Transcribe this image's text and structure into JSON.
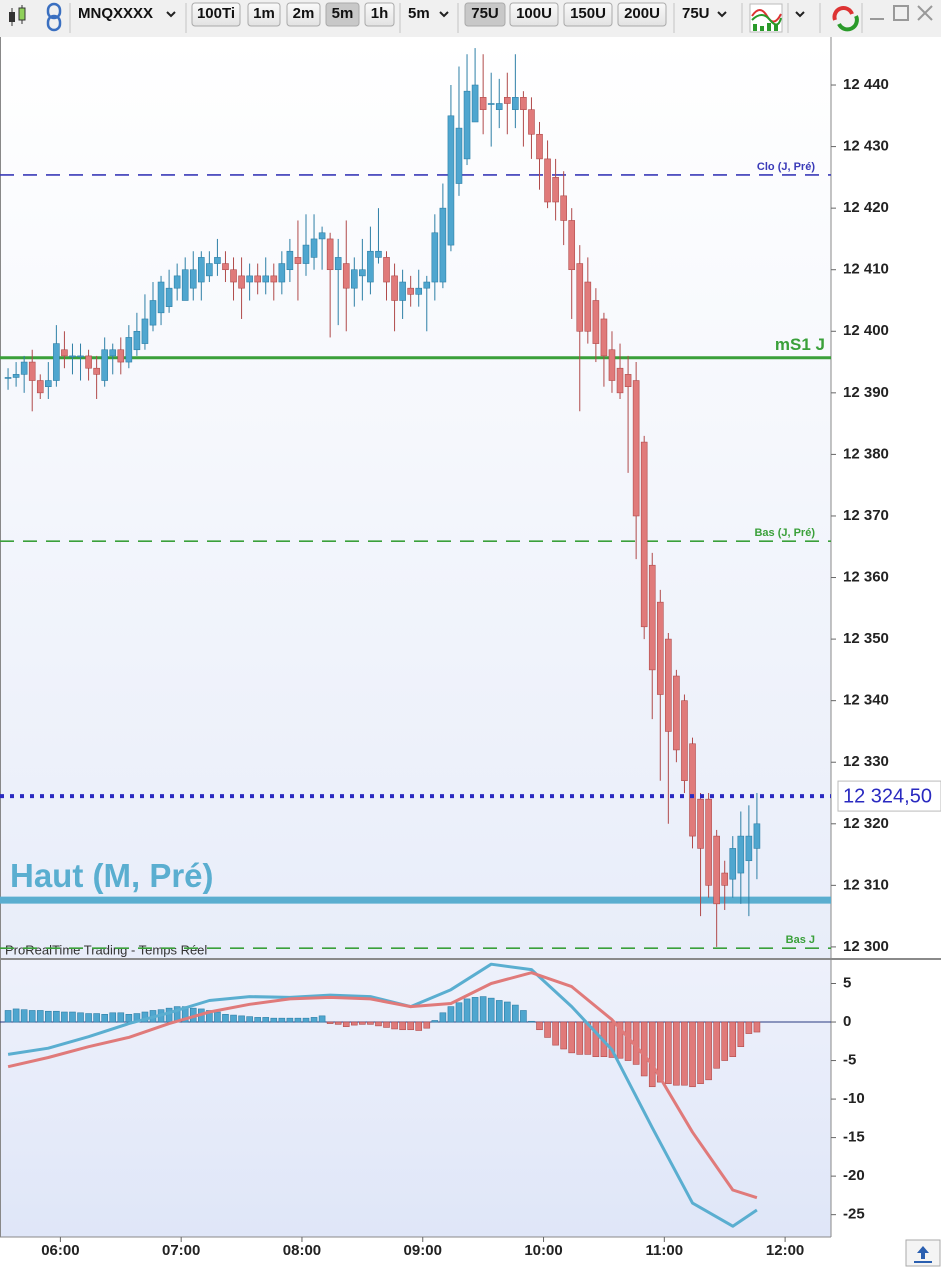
{
  "toolbar": {
    "symbol": "MNQXXXX",
    "buttons": [
      "100Ti",
      "1m",
      "2m",
      "5m",
      "1h"
    ],
    "period": "5m",
    "tick_buttons": [
      "75U",
      "100U",
      "150U",
      "200U"
    ],
    "tick_size": "75U"
  },
  "chart_data": [
    {
      "type": "candlestick",
      "watermark": "ProRealTime Trading - Temps Réel",
      "up_color": "#4fa6cf",
      "down_color": "#e07a7a",
      "x": [
        0,
        1,
        2,
        3,
        4,
        5,
        6,
        7,
        8,
        9,
        10,
        11,
        12,
        13,
        14,
        15,
        16,
        17,
        18,
        19,
        20,
        21,
        22,
        23,
        24,
        25,
        26,
        27,
        28,
        29,
        30,
        31,
        32,
        33,
        34,
        35,
        36,
        37,
        38,
        39,
        40,
        41,
        42,
        43,
        44,
        45,
        46,
        47,
        48,
        49,
        50,
        51,
        52,
        53,
        54,
        55,
        56,
        57,
        58,
        59,
        60,
        61,
        62,
        63,
        64,
        65,
        66,
        67,
        68,
        69,
        70,
        71,
        72,
        73,
        74,
        75,
        76,
        77,
        78,
        79,
        80,
        81,
        82,
        83,
        84,
        85,
        86,
        87,
        88,
        89,
        90,
        91,
        92,
        93
      ],
      "open": [
        12392.5,
        12392.5,
        12393,
        12395,
        12392,
        12391,
        12392,
        12397,
        12396,
        12396,
        12396,
        12394,
        12392,
        12396,
        12397,
        12395,
        12397,
        12398,
        12401,
        12403,
        12404,
        12407,
        12405,
        12407,
        12408,
        12409,
        12411,
        12411,
        12410,
        12409,
        12408,
        12409,
        12408,
        12409,
        12408,
        12410,
        12412,
        12411,
        12412,
        12415,
        12415,
        12410,
        12411,
        12407,
        12409,
        12408,
        12412,
        12412,
        12409,
        12405,
        12407,
        12406,
        12407,
        12408,
        12408,
        12414,
        12424,
        12428,
        12434,
        12438,
        12437,
        12436,
        12438,
        12436,
        12438,
        12436,
        12432,
        12428,
        12425,
        12422,
        12418,
        12411,
        12408,
        12405,
        12402,
        12397,
        12394,
        12393,
        12392,
        12382,
        12362,
        12356,
        12350,
        12344,
        12340,
        12333,
        12324,
        12324,
        12318,
        12312,
        12311,
        12312,
        12314,
        12316
      ],
      "high": [
        12394,
        12395,
        12396,
        12397,
        12393,
        12395,
        12401,
        12400,
        12398,
        12398,
        12397,
        12396,
        12399,
        12398,
        12399,
        12401,
        12403,
        12406,
        12408,
        12409,
        12410,
        12411,
        12412,
        12413,
        12413,
        12413,
        12415,
        12413,
        12412,
        12412,
        12411,
        12411,
        12412,
        12411,
        12413,
        12415,
        12418,
        12419,
        12419,
        12417,
        12416,
        12415,
        12418,
        12412,
        12415,
        12417,
        12420,
        12413,
        12411,
        12410,
        12409,
        12410,
        12409,
        12419,
        12424,
        12440,
        12443,
        12445,
        12446,
        12445,
        12442,
        12441,
        12442,
        12445,
        12439,
        12438,
        12434,
        12431,
        12428,
        12426,
        12420,
        12414,
        12412,
        12407,
        12403,
        12400,
        12398,
        12396,
        12395,
        12383,
        12364,
        12358,
        12351,
        12345,
        12341,
        12334,
        12325,
        12325,
        12319,
        12314,
        12318,
        12322,
        12323,
        12325
      ],
      "low": [
        12390.5,
        12391,
        12390,
        12387,
        12389,
        12389,
        12391,
        12394,
        12393,
        12392,
        12392,
        12389,
        12391,
        12393,
        12393,
        12394,
        12396,
        12397,
        12400,
        12401,
        12403,
        12405,
        12405,
        12405,
        12405,
        12408,
        12409,
        12408,
        12405,
        12402,
        12405,
        12406,
        12406,
        12405,
        12406,
        12408,
        12405,
        12409,
        12410,
        12410,
        12399,
        12401,
        12400,
        12404,
        12405,
        12406,
        12411,
        12405,
        12400,
        12402,
        12404,
        12404,
        12400,
        12405,
        12407,
        12413,
        12422,
        12427,
        12434,
        12432,
        12430,
        12433,
        12432,
        12433,
        12430,
        12428,
        12423,
        12420,
        12418,
        12414,
        12402,
        12387,
        12398,
        12395,
        12391,
        12390,
        12389,
        12377,
        12363,
        12350,
        12337,
        12327,
        12320,
        12330,
        12325,
        12316,
        12305,
        12308,
        12300,
        12306,
        12308,
        12307,
        12305,
        12311
      ],
      "close": [
        12392.5,
        12393,
        12395,
        12392,
        12390,
        12392,
        12398,
        12396,
        12396,
        12396,
        12394,
        12393,
        12397,
        12397,
        12395,
        12399,
        12400,
        12402,
        12405,
        12408,
        12407,
        12409,
        12410,
        12410,
        12412,
        12411,
        12412,
        12410,
        12408,
        12407,
        12409,
        12408,
        12409,
        12408,
        12411,
        12413,
        12411,
        12414,
        12415,
        12416,
        12410,
        12412,
        12407,
        12410,
        12410,
        12413,
        12413,
        12408,
        12405,
        12408,
        12406,
        12407,
        12408,
        12416,
        12420,
        12435,
        12433,
        12439,
        12440,
        12436,
        12437,
        12437,
        12437,
        12438,
        12436,
        12432,
        12428,
        12421,
        12421,
        12418,
        12410,
        12400,
        12400,
        12398,
        12396,
        12392,
        12390,
        12391,
        12370,
        12352,
        12345,
        12341,
        12335,
        12332,
        12327,
        12318,
        12316,
        12310,
        12307,
        12310,
        12316,
        12318,
        12318,
        12320
      ],
      "xlim": [
        -1,
        102.2
      ],
      "ylim": [
        12298.2,
        12447.8
      ],
      "yticks": [
        {
          "value": 12440,
          "label": "12 440"
        },
        {
          "value": 12430,
          "label": "12 430"
        },
        {
          "value": 12420,
          "label": "12 420"
        },
        {
          "value": 12410,
          "label": "12 410"
        },
        {
          "value": 12400,
          "label": "12 400"
        },
        {
          "value": 12390,
          "label": "12 390"
        },
        {
          "value": 12380,
          "label": "12 380"
        },
        {
          "value": 12370,
          "label": "12 370"
        },
        {
          "value": 12360,
          "label": "12 360"
        },
        {
          "value": 12350,
          "label": "12 350"
        },
        {
          "value": 12340,
          "label": "12 340"
        },
        {
          "value": 12330,
          "label": "12 330"
        },
        {
          "value": 12320,
          "label": "12 320"
        },
        {
          "value": 12310,
          "label": "12 310"
        },
        {
          "value": 12300,
          "label": "12 300"
        }
      ],
      "lines": [
        {
          "label": "Clo (J, Pré)",
          "value": 12425.4,
          "color": "#3a3ab8",
          "style": "dashed",
          "label_style": "small"
        },
        {
          "label": "mS1 J",
          "value": 12395.7,
          "color": "#3aa03a",
          "style": "solid",
          "label_style": "medium"
        },
        {
          "label": "Bas (J, Pré)",
          "value": 12365.9,
          "color": "#3aa03a",
          "style": "dashed",
          "label_style": "small"
        },
        {
          "label": "Bas J",
          "value": 12299.8,
          "color": "#3aa03a",
          "style": "dashed",
          "label_style": "small"
        },
        {
          "label": "Haut (M, Pré)",
          "value": 12307.6,
          "color": "#5aaed0",
          "style": "thick",
          "label_style": "large"
        }
      ],
      "last_price": {
        "value": 12324.5,
        "label": "12 324,50",
        "color": "#2a2ac0"
      }
    },
    {
      "type": "macd",
      "xlim": [
        -1,
        102.2
      ],
      "ylim": [
        -27.9,
        8.05
      ],
      "yticks": [
        5,
        0,
        -5,
        -10,
        -15,
        -20,
        -25
      ],
      "xticks": [
        {
          "value": 6.5,
          "label": "06:00"
        },
        {
          "value": 21.5,
          "label": "07:00"
        },
        {
          "value": 36.5,
          "label": "08:00"
        },
        {
          "value": 51.5,
          "label": "09:00"
        },
        {
          "value": 66.5,
          "label": "10:00"
        },
        {
          "value": 81.5,
          "label": "11:00"
        },
        {
          "value": 96.5,
          "label": "12:00"
        }
      ],
      "histogram": [
        1.5,
        1.7,
        1.6,
        1.5,
        1.5,
        1.4,
        1.4,
        1.3,
        1.3,
        1.2,
        1.1,
        1.1,
        1.0,
        1.2,
        1.2,
        1.0,
        1.1,
        1.3,
        1.5,
        1.6,
        1.8,
        2.0,
        2.0,
        1.8,
        1.7,
        1.5,
        1.3,
        1.0,
        0.9,
        0.8,
        0.7,
        0.6,
        0.6,
        0.5,
        0.5,
        0.5,
        0.5,
        0.5,
        0.6,
        0.8,
        -0.2,
        -0.3,
        -0.6,
        -0.4,
        -0.3,
        -0.3,
        -0.5,
        -0.7,
        -0.9,
        -1.0,
        -1.0,
        -1.1,
        -0.8,
        0.2,
        1.2,
        2.0,
        2.5,
        3.0,
        3.2,
        3.3,
        3.1,
        2.8,
        2.6,
        2.2,
        1.5,
        0.1,
        -1,
        -2,
        -3,
        -3.5,
        -4,
        -4.2,
        -4.2,
        -4.5,
        -4.5,
        -4.6,
        -4.7,
        -5,
        -5.5,
        -7,
        -8.4,
        -7.8,
        -8,
        -8.2,
        -8.2,
        -8.4,
        -8,
        -7.5,
        -6,
        -5,
        -4.5,
        -3.2,
        -1.5,
        -1.3
      ],
      "up_color": "#4fa6cf",
      "down_color": "#e07a7a",
      "series": [
        {
          "color": "#5aaed0",
          "x": [
            0,
            5,
            10,
            15,
            20,
            25,
            30,
            35,
            40,
            45,
            50,
            55,
            60,
            65,
            70,
            75,
            80,
            85,
            90,
            93
          ],
          "values": [
            -4.2,
            -3.4,
            -1.9,
            -0.2,
            1.2,
            2.8,
            3.3,
            3.2,
            3.5,
            3.3,
            2.0,
            4.2,
            7.5,
            6.8,
            2.0,
            -3.6,
            -13.7,
            -23.5,
            -26.5,
            -24.4
          ]
        },
        {
          "color": "#e07a7a",
          "x": [
            0,
            5,
            10,
            15,
            20,
            25,
            30,
            35,
            40,
            45,
            50,
            55,
            60,
            65,
            70,
            75,
            80,
            85,
            90,
            93
          ],
          "values": [
            -5.8,
            -4.6,
            -3.2,
            -2.0,
            -0.2,
            1.3,
            2.3,
            3.0,
            3.2,
            3.0,
            2.0,
            2.4,
            5.0,
            6.4,
            4.6,
            0.3,
            -5.5,
            -14.3,
            -21.8,
            -22.8
          ]
        }
      ]
    }
  ]
}
